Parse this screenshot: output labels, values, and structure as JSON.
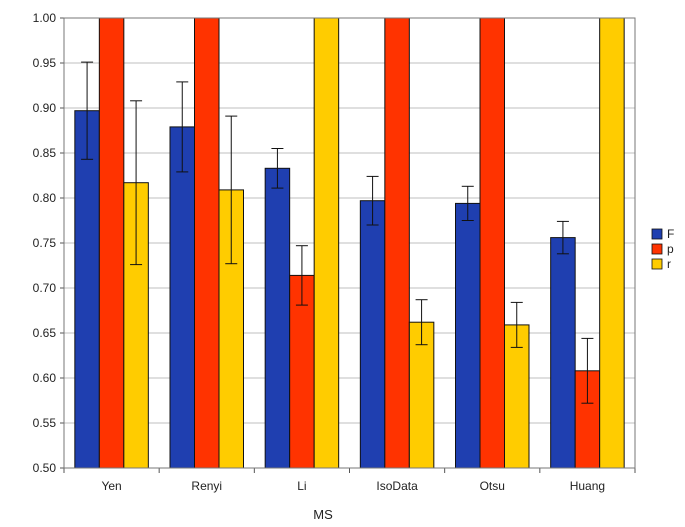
{
  "chart_data": {
    "type": "bar",
    "title": "",
    "xlabel": "MS",
    "ylabel": "",
    "categories": [
      "Yen",
      "Renyi",
      "Li",
      "IsoData",
      "Otsu",
      "Huang"
    ],
    "ylim": [
      0.5,
      1.0
    ],
    "yticks": [
      "0.50",
      "0.55",
      "0.60",
      "0.65",
      "0.70",
      "0.75",
      "0.80",
      "0.85",
      "0.90",
      "0.95",
      "1.00"
    ],
    "grid": "horizontal",
    "legend_position": "right",
    "series": [
      {
        "name": "F",
        "color": "#1f3fb0",
        "values": [
          0.897,
          0.879,
          0.833,
          0.797,
          0.794,
          0.756
        ],
        "errors": [
          0.054,
          0.05,
          0.022,
          0.027,
          0.019,
          0.018
        ]
      },
      {
        "name": "p",
        "color": "#ff3300",
        "values": [
          1.0,
          1.0,
          0.714,
          1.0,
          1.0,
          0.608
        ],
        "errors": [
          0,
          0,
          0.033,
          0,
          0,
          0.036
        ]
      },
      {
        "name": "r",
        "color": "#ffcc00",
        "values": [
          0.817,
          0.809,
          1.0,
          0.662,
          0.659,
          1.0
        ],
        "errors": [
          0.091,
          0.082,
          0,
          0.025,
          0.025,
          0
        ]
      }
    ]
  }
}
